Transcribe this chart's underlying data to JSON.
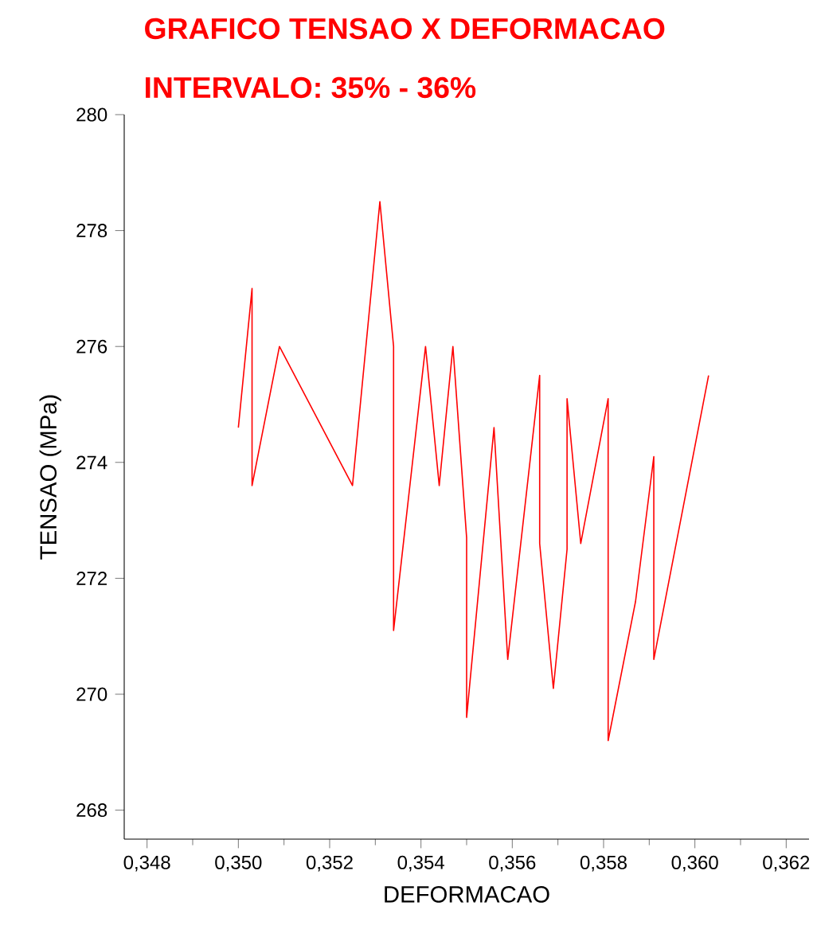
{
  "chart_data": {
    "type": "line",
    "title": "GRAFICO TENSAO X DEFORMACAO",
    "subtitle": "INTERVALO: 35% - 36%",
    "xlabel": "DEFORMACAO",
    "ylabel": "TENSAO (MPa)",
    "xlim": [
      0.3475,
      0.3625
    ],
    "xticks": [
      {
        "value": 0.348,
        "label": "0,348"
      },
      {
        "value": 0.35,
        "label": "0,350"
      },
      {
        "value": 0.352,
        "label": "0,352"
      },
      {
        "value": 0.354,
        "label": "0,354"
      },
      {
        "value": 0.356,
        "label": "0,356"
      },
      {
        "value": 0.358,
        "label": "0,358"
      },
      {
        "value": 0.36,
        "label": "0,360"
      },
      {
        "value": 0.362,
        "label": "0,362"
      }
    ],
    "ylim": [
      267.5,
      280
    ],
    "yticks": [
      268,
      270,
      272,
      274,
      276,
      278,
      280
    ],
    "series": [
      {
        "color": "#ff0000",
        "x": [
          0.35,
          0.3503,
          0.3503,
          0.3509,
          0.3525,
          0.3531,
          0.3534,
          0.3534,
          0.3541,
          0.3544,
          0.3547,
          0.355,
          0.355,
          0.3556,
          0.3559,
          0.3566,
          0.3566,
          0.3569,
          0.3572,
          0.3572,
          0.3575,
          0.3581,
          0.3581,
          0.3587,
          0.3591,
          0.3591,
          0.3603
        ],
        "values": [
          274.6,
          277.0,
          273.6,
          276.0,
          273.6,
          278.5,
          276.0,
          271.1,
          276.0,
          273.6,
          276.0,
          272.7,
          269.6,
          274.6,
          270.6,
          275.5,
          272.6,
          270.1,
          272.5,
          275.1,
          272.6,
          275.1,
          269.2,
          271.6,
          274.1,
          270.6,
          275.5
        ]
      }
    ],
    "grid": false,
    "marker": "none",
    "line_style": "solid"
  }
}
